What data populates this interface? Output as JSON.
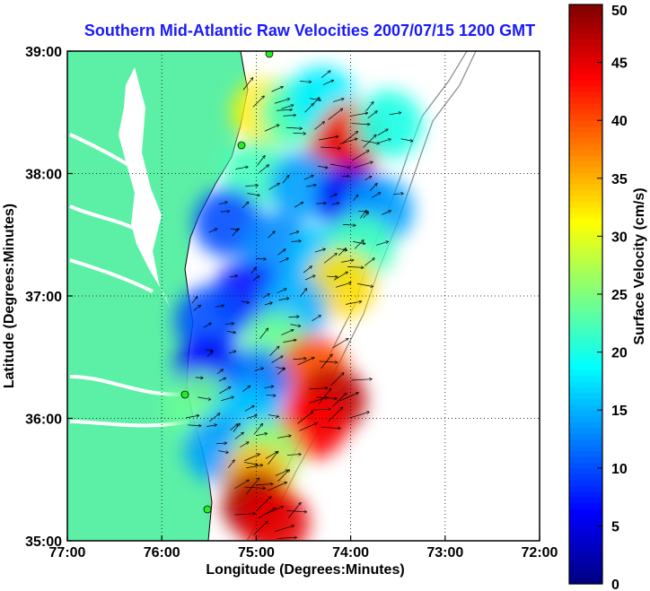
{
  "chart_data": {
    "type": "heatmap",
    "title": "Southern Mid-Atlantic Raw Velocities 2007/07/15 1200 GMT",
    "xlabel": "Longitude (Degrees:Minutes)",
    "ylabel": "Latitude (Degrees:Minutes)",
    "colorbar_label": "Surface Velocity (cm/s)",
    "x_ticks": [
      "77:00",
      "76:00",
      "75:00",
      "74:00",
      "73:00",
      "72:00"
    ],
    "y_ticks": [
      "35:00",
      "36:00",
      "37:00",
      "38:00",
      "39:00"
    ],
    "x_tick_values": [
      -77,
      -76,
      -75,
      -74,
      -73,
      -72
    ],
    "y_tick_values": [
      35,
      36,
      37,
      38,
      39
    ],
    "xlim": [
      -77,
      -72
    ],
    "ylim": [
      35,
      39
    ],
    "colorbar_ticks": [
      0,
      5,
      10,
      15,
      20,
      25,
      30,
      35,
      40,
      45,
      50
    ],
    "colorbar_range": [
      0,
      50
    ],
    "colormap": "jet",
    "grid": true,
    "colors": {
      "land": "#5cf0a6",
      "water": "#ffffff",
      "grid": "#000000",
      "title": "#1a1aff"
    },
    "velocity_field": [
      {
        "lon": -74.9,
        "lat": 38.5,
        "speed": 32
      },
      {
        "lon": -74.6,
        "lat": 38.5,
        "speed": 22
      },
      {
        "lon": -74.3,
        "lat": 38.6,
        "speed": 18
      },
      {
        "lon": -74.0,
        "lat": 38.3,
        "speed": 40
      },
      {
        "lon": -74.1,
        "lat": 38.15,
        "speed": 45
      },
      {
        "lon": -73.6,
        "lat": 38.4,
        "speed": 20
      },
      {
        "lon": -75.0,
        "lat": 38.0,
        "speed": 22
      },
      {
        "lon": -74.5,
        "lat": 37.9,
        "speed": 14
      },
      {
        "lon": -74.0,
        "lat": 37.8,
        "speed": 6
      },
      {
        "lon": -73.7,
        "lat": 37.7,
        "speed": 14
      },
      {
        "lon": -75.3,
        "lat": 37.6,
        "speed": 10
      },
      {
        "lon": -74.8,
        "lat": 37.4,
        "speed": 13
      },
      {
        "lon": -74.3,
        "lat": 37.3,
        "speed": 16
      },
      {
        "lon": -73.9,
        "lat": 37.4,
        "speed": 22
      },
      {
        "lon": -74.1,
        "lat": 37.1,
        "speed": 33
      },
      {
        "lon": -75.1,
        "lat": 37.0,
        "speed": 7
      },
      {
        "lon": -75.5,
        "lat": 36.8,
        "speed": 10
      },
      {
        "lon": -74.6,
        "lat": 36.9,
        "speed": 15
      },
      {
        "lon": -74.8,
        "lat": 36.6,
        "speed": 24
      },
      {
        "lon": -74.4,
        "lat": 36.4,
        "speed": 40
      },
      {
        "lon": -74.2,
        "lat": 36.15,
        "speed": 47
      },
      {
        "lon": -74.4,
        "lat": 35.95,
        "speed": 44
      },
      {
        "lon": -75.5,
        "lat": 36.4,
        "speed": 6
      },
      {
        "lon": -75.0,
        "lat": 36.3,
        "speed": 12
      },
      {
        "lon": -75.6,
        "lat": 36.1,
        "speed": 24
      },
      {
        "lon": -75.1,
        "lat": 36.0,
        "speed": 16
      },
      {
        "lon": -75.4,
        "lat": 35.75,
        "speed": 14
      },
      {
        "lon": -74.9,
        "lat": 35.7,
        "speed": 26
      },
      {
        "lon": -75.0,
        "lat": 35.5,
        "speed": 35
      },
      {
        "lon": -75.0,
        "lat": 35.3,
        "speed": 48
      },
      {
        "lon": -74.8,
        "lat": 35.15,
        "speed": 45
      }
    ]
  }
}
